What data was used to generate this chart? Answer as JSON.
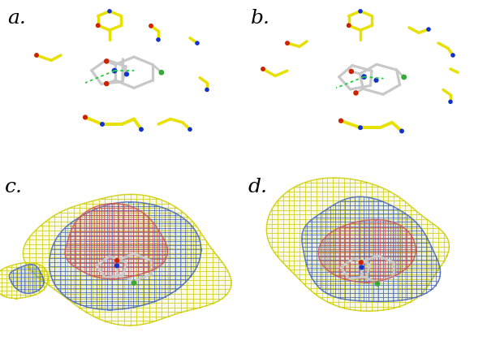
{
  "figsize": [
    6.0,
    4.25
  ],
  "dpi": 100,
  "background": "#ffffff",
  "panels": [
    "a.",
    "b.",
    "c.",
    "d."
  ],
  "label_fontsize": 18,
  "label_color": "#000000",
  "yellow": "#e8e000",
  "yellow2": "#d4c800",
  "gray_stick": "#c8c8c8",
  "gray_dark": "#a0a0a0",
  "atom_O": "#cc2200",
  "atom_N": "#1133cc",
  "atom_Cl": "#33aa33",
  "atom_S": "#e8e000",
  "green_dash": "#22cc44",
  "mesh_Y": "#cccc00",
  "mesh_B": "#4466bb",
  "mesh_R": "#cc5555",
  "mesh_lw": 0.6,
  "mesh_alpha": 0.85
}
